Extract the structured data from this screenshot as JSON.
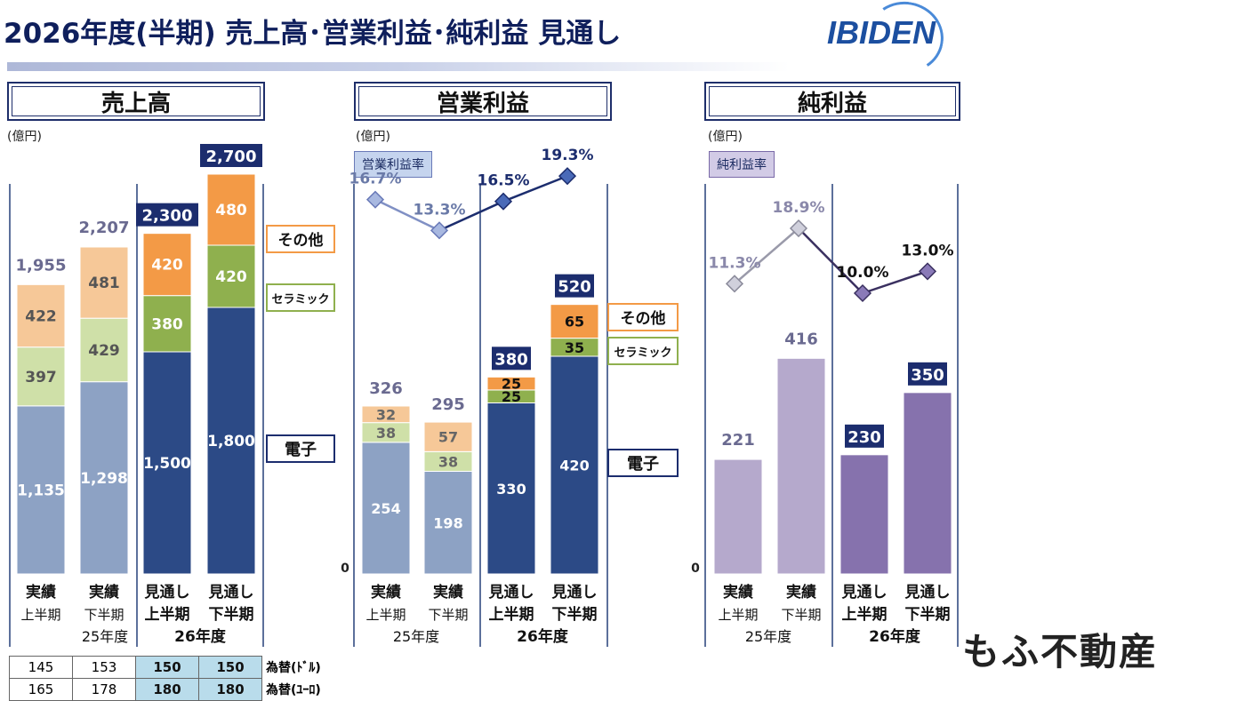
{
  "header": {
    "title": "2026年度(半期) 売上高･営業利益･純利益 見通し",
    "logo": "IBIDEN"
  },
  "panels": {
    "sales": {
      "title": "売上高",
      "unit": "(億円)"
    },
    "op": {
      "title": "営業利益",
      "unit": "(億円)",
      "rate_label": "営業利益率"
    },
    "net": {
      "title": "純利益",
      "unit": "(億円)",
      "rate_label": "純利益率"
    }
  },
  "legend": {
    "other": "その他",
    "ceramic": "セラミック",
    "electronics": "電子"
  },
  "columns": [
    {
      "top": "実績",
      "sub": "上半期"
    },
    {
      "top": "実績",
      "sub": "下半期"
    },
    {
      "top": "見通し",
      "sub": "上半期"
    },
    {
      "top": "見通し",
      "sub": "下半期"
    }
  ],
  "years": {
    "fy25": "25年度",
    "fy26": "26年度"
  },
  "zero_label": "0",
  "fx": {
    "rows": [
      {
        "values": [
          "145",
          "153",
          "150",
          "150"
        ],
        "label": "為替(ﾄﾞﾙ)"
      },
      {
        "values": [
          "165",
          "178",
          "180",
          "180"
        ],
        "label": "為替(ﾕｰﾛ)"
      }
    ]
  },
  "watermark": "もふ不動産",
  "colors": {
    "navy": "#26407a",
    "elec_actual": "#8da2c4",
    "cer_actual": "#cfe0a8",
    "oth_actual": "#f6c898",
    "elec_fc": "#2c4a86",
    "cer_fc": "#8fb04e",
    "oth_fc": "#f39a46",
    "net_actual": "#b5a9cc",
    "net_fc": "#8672ad",
    "line_actual": "#8090c4",
    "line_fc": "#1c2d6e",
    "net_line_actual": "#9a9aaa",
    "net_line_fc": "#3a3060"
  },
  "chart_data": [
    {
      "type": "bar",
      "stacked": true,
      "title": "売上高",
      "ylabel": "(億円)",
      "categories": [
        "実績 上半期",
        "実績 下半期",
        "見通し 上半期",
        "見通し 下半期"
      ],
      "series": [
        {
          "name": "電子",
          "values": [
            1135,
            1298,
            1500,
            1800
          ]
        },
        {
          "name": "セラミック",
          "values": [
            397,
            429,
            380,
            420
          ]
        },
        {
          "name": "その他",
          "values": [
            422,
            481,
            420,
            480
          ]
        }
      ],
      "totals": [
        1955,
        2207,
        2300,
        2700
      ],
      "total_labels": [
        "1,955",
        "2,207",
        "2,300",
        "2,700"
      ],
      "value_labels": {
        "電子": [
          "1,135",
          "1,298",
          "1,500",
          "1,800"
        ],
        "セラミック": [
          "397",
          "429",
          "380",
          "420"
        ],
        "その他": [
          "422",
          "481",
          "420",
          "480"
        ]
      },
      "ylim": [
        0,
        2900
      ]
    },
    {
      "type": "bar",
      "stacked": true,
      "title": "営業利益",
      "ylabel": "(億円)",
      "categories": [
        "実績 上半期",
        "実績 下半期",
        "見通し 上半期",
        "見通し 下半期"
      ],
      "series": [
        {
          "name": "電子",
          "values": [
            254,
            198,
            330,
            420
          ]
        },
        {
          "name": "セラミック",
          "values": [
            38,
            38,
            25,
            35
          ]
        },
        {
          "name": "その他",
          "values": [
            32,
            57,
            25,
            65
          ]
        }
      ],
      "totals": [
        326,
        295,
        380,
        520
      ],
      "rate": {
        "name": "営業利益率",
        "values": [
          16.7,
          13.3,
          16.5,
          19.3
        ],
        "labels": [
          "16.7%",
          "13.3%",
          "16.5%",
          "19.3%"
        ]
      },
      "ylim": [
        0,
        560
      ]
    },
    {
      "type": "bar",
      "title": "純利益",
      "ylabel": "(億円)",
      "categories": [
        "実績 上半期",
        "実績 下半期",
        "見通し 上半期",
        "見通し 下半期"
      ],
      "values": [
        221,
        416,
        230,
        350
      ],
      "rate": {
        "name": "純利益率",
        "values": [
          11.3,
          18.9,
          10.0,
          13.0
        ],
        "labels": [
          "11.3%",
          "18.9%",
          "10.0%",
          "13.0%"
        ]
      },
      "ylim": [
        0,
        560
      ]
    }
  ]
}
